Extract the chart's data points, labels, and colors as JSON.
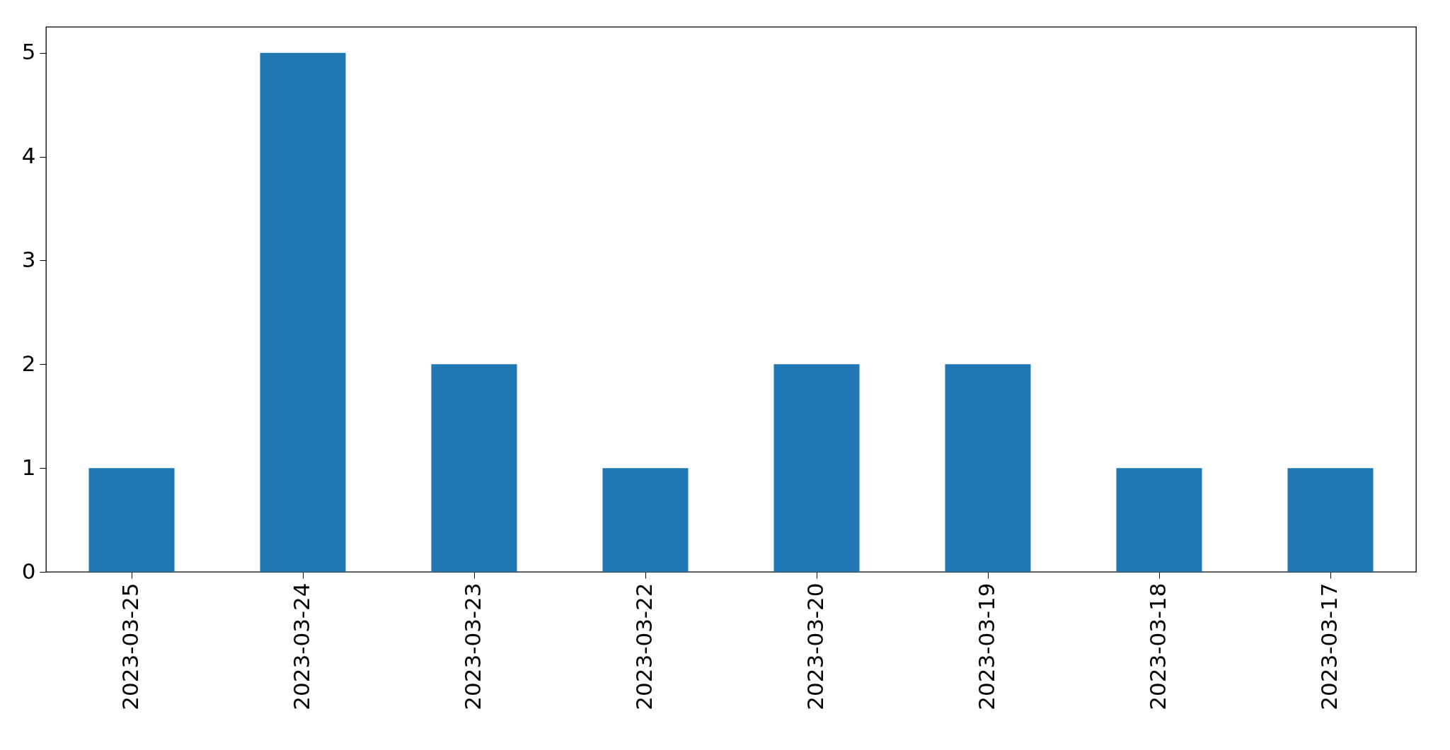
{
  "chart_data": {
    "type": "bar",
    "categories": [
      "2023-03-25",
      "2023-03-24",
      "2023-03-23",
      "2023-03-22",
      "2023-03-20",
      "2023-03-19",
      "2023-03-18",
      "2023-03-17"
    ],
    "values": [
      1,
      5,
      2,
      1,
      2,
      2,
      1,
      1
    ],
    "color": "#1f77b4",
    "ylim": [
      0,
      5.25
    ],
    "yticks": [
      0,
      1,
      2,
      3,
      4,
      5
    ],
    "grid": false
  }
}
